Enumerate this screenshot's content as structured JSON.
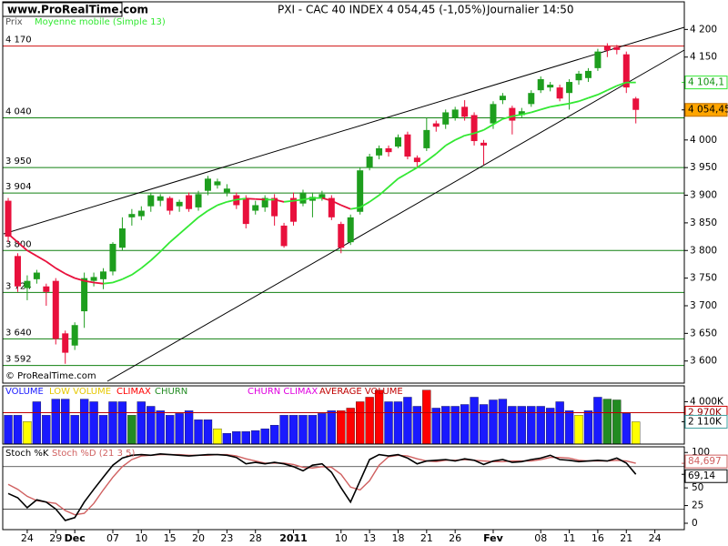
{
  "chart_data": {
    "type": "candlestick",
    "site": "www.ProRealTime.com",
    "title": "PXI - CAC 40 INDEX",
    "price_text": "4 054,45 (-1,05%)",
    "period": "Journalier  14:50",
    "price_axis_title": "Prix",
    "copyright": "© ProRealTime.com",
    "categories": [
      null,
      null,
      "24",
      null,
      null,
      "29",
      null,
      "Dec",
      null,
      null,
      null,
      "07",
      null,
      null,
      "10",
      null,
      null,
      "15",
      null,
      null,
      "20",
      null,
      null,
      "23",
      null,
      null,
      "28",
      null,
      null,
      null,
      "2011",
      null,
      null,
      null,
      null,
      "10",
      null,
      null,
      "13",
      null,
      null,
      "18",
      null,
      null,
      "21",
      null,
      null,
      "26",
      null,
      null,
      null,
      "Fev",
      null,
      null,
      null,
      null,
      "08",
      null,
      null,
      "11",
      null,
      null,
      "16",
      null,
      null,
      "21",
      null,
      null,
      "24"
    ],
    "open": [
      3890,
      3790,
      3732,
      3748,
      3735,
      3745,
      3650,
      3628,
      3690,
      3745,
      3748,
      3762,
      3805,
      3860,
      3862,
      3880,
      3890,
      3895,
      3880,
      3900,
      3878,
      3908,
      3918,
      3905,
      3900,
      3895,
      3872,
      3878,
      3895,
      3845,
      3895,
      3885,
      3890,
      3895,
      3895,
      3848,
      3815,
      3870,
      3950,
      3972,
      3985,
      3988,
      4010,
      3968,
      3985,
      4030,
      4028,
      4040,
      4060,
      4045,
      3995,
      4030,
      4072,
      4058,
      4045,
      4065,
      4090,
      4095,
      4095,
      4085,
      4108,
      4112,
      4130,
      4170,
      4168,
      4155,
      4075,
      null,
      null
    ],
    "high": [
      3895,
      3795,
      3755,
      3765,
      3740,
      3750,
      3655,
      3670,
      3760,
      3760,
      3768,
      3815,
      3860,
      3875,
      3880,
      3905,
      3902,
      3898,
      3892,
      3905,
      3908,
      3935,
      3930,
      3920,
      3905,
      3900,
      3890,
      3900,
      3902,
      3850,
      3905,
      3910,
      3905,
      3908,
      3900,
      3852,
      3865,
      3950,
      3975,
      3990,
      3990,
      4010,
      4015,
      3972,
      4040,
      4035,
      4055,
      4060,
      4072,
      4050,
      4000,
      4070,
      4085,
      4062,
      4058,
      4090,
      4115,
      4105,
      4100,
      4110,
      4125,
      4130,
      4165,
      4175,
      4172,
      4160,
      4078,
      null,
      null
    ],
    "low": [
      3815,
      3725,
      3710,
      3740,
      3700,
      3630,
      3595,
      3620,
      3660,
      3735,
      3730,
      3755,
      3800,
      3845,
      3855,
      3870,
      3880,
      3865,
      3870,
      3870,
      3872,
      3900,
      3912,
      3898,
      3875,
      3840,
      3865,
      3870,
      3845,
      3805,
      3845,
      3880,
      3860,
      3890,
      3855,
      3795,
      3810,
      3865,
      3945,
      3965,
      3970,
      3985,
      3965,
      3950,
      3980,
      4015,
      4020,
      4035,
      4035,
      3990,
      3955,
      4020,
      4065,
      4010,
      4040,
      4060,
      4085,
      4088,
      4070,
      4055,
      4100,
      4105,
      4125,
      4150,
      4155,
      4085,
      4030,
      null,
      null
    ],
    "close": [
      3825,
      3735,
      3745,
      3760,
      3725,
      3640,
      3615,
      3665,
      3750,
      3752,
      3762,
      3812,
      3840,
      3866,
      3872,
      3900,
      3898,
      3872,
      3888,
      3875,
      3902,
      3930,
      3925,
      3912,
      3882,
      3848,
      3882,
      3895,
      3862,
      3808,
      3852,
      3905,
      3897,
      3902,
      3860,
      3805,
      3860,
      3945,
      3970,
      3985,
      3978,
      4005,
      3970,
      3960,
      4018,
      4024,
      4050,
      4055,
      4042,
      3998,
      3990,
      4065,
      4080,
      4035,
      4052,
      4085,
      4110,
      4100,
      4075,
      4105,
      4120,
      4125,
      4160,
      4162,
      4163,
      4095,
      4054.45,
      null,
      null
    ],
    "up_color": "#1e9e1e",
    "down_color": "#e8103c",
    "ylim": [
      3560,
      4250
    ],
    "yticks": [
      {
        "value": 4200,
        "label": "4 200"
      },
      {
        "value": 4150,
        "label": "4 150"
      },
      {
        "value": 4000,
        "label": "4 000"
      },
      {
        "value": 3950,
        "label": "3 950"
      },
      {
        "value": 3900,
        "label": "3 900"
      },
      {
        "value": 3850,
        "label": "3 850"
      },
      {
        "value": 3800,
        "label": "3 800"
      },
      {
        "value": 3750,
        "label": "3 750"
      },
      {
        "value": 3700,
        "label": "3 700"
      },
      {
        "value": 3650,
        "label": "3 650"
      },
      {
        "value": 3600,
        "label": "3 600"
      }
    ],
    "levels": [
      {
        "value": 4170,
        "label": "4 170",
        "color": "#d01010"
      },
      {
        "value": 4040,
        "label": "4 040",
        "color": "#108010"
      },
      {
        "value": 3950,
        "label": "3 950",
        "color": "#108010"
      },
      {
        "value": 3904,
        "label": "3 904",
        "color": "#108010"
      },
      {
        "value": 3800,
        "label": "3 800",
        "color": "#108010"
      },
      {
        "value": 3724,
        "label": "3 724",
        "color": "#108010"
      },
      {
        "value": 3640,
        "label": "3 640",
        "color": "#108010"
      },
      {
        "value": 3592,
        "label": "3 592",
        "color": "#108010"
      }
    ],
    "moving_average": {
      "name": "Moyenne mobile (Simple 13)",
      "color": "#33e833",
      "down_color": "#e8103c",
      "values": [
        3830,
        3815,
        3800,
        3790,
        3780,
        3768,
        3758,
        3750,
        3745,
        3742,
        3740,
        3742,
        3748,
        3756,
        3768,
        3782,
        3798,
        3815,
        3830,
        3845,
        3860,
        3872,
        3882,
        3888,
        3892,
        3894,
        3893,
        3892,
        3892,
        3888,
        3890,
        3892,
        3895,
        3895,
        3890,
        3882,
        3875,
        3878,
        3888,
        3900,
        3915,
        3930,
        3940,
        3950,
        3962,
        3975,
        3990,
        4000,
        4008,
        4012,
        4018,
        4028,
        4038,
        4043,
        4046,
        4050,
        4055,
        4060,
        4063,
        4066,
        4070,
        4076,
        4082,
        4090,
        4098,
        4104,
        4104.1,
        null,
        null
      ],
      "last": {
        "value": 4104.1,
        "label": "4 104,1"
      }
    },
    "last_price": {
      "value": 4054.45,
      "label": "4 054,45",
      "color": "#ffa500"
    },
    "volume": {
      "name": "VOLUME",
      "color": "#1a1aff",
      "legend": [
        {
          "name": "LOW VOLUME",
          "color": "#e6c800"
        },
        {
          "name": "CLIMAX",
          "color": "#ff0000"
        },
        {
          "name": "CHURN",
          "color": "#228b22"
        },
        {
          "name": "CHURN CLIMAX",
          "color": "#e000e0"
        },
        {
          "name": "AVERAGE VOLUME",
          "color": "#c00000"
        }
      ],
      "values": [
        2720,
        2720,
        2130,
        4000,
        2720,
        4250,
        4250,
        2720,
        4250,
        4000,
        2720,
        4000,
        4000,
        2720,
        4000,
        3570,
        3150,
        2720,
        2890,
        3150,
        2300,
        2300,
        1450,
        1020,
        1190,
        1190,
        1280,
        1450,
        1790,
        2720,
        2720,
        2720,
        2720,
        2890,
        3150,
        3150,
        3400,
        4000,
        4430,
        5100,
        4000,
        4000,
        4430,
        3570,
        5100,
        3400,
        3570,
        3570,
        3740,
        4430,
        3740,
        4170,
        4250,
        3570,
        3570,
        3570,
        3570,
        3400,
        4000,
        3150,
        2720,
        3150,
        4430,
        4250,
        4170,
        2900,
        2110,
        null,
        null
      ],
      "colors": [
        "#1a1aff",
        "#1a1aff",
        "#ffff00",
        "#1a1aff",
        "#1a1aff",
        "#1a1aff",
        "#1a1aff",
        "#1a1aff",
        "#1a1aff",
        "#1a1aff",
        "#1a1aff",
        "#1a1aff",
        "#1a1aff",
        "#228b22",
        "#1a1aff",
        "#1a1aff",
        "#1a1aff",
        "#1a1aff",
        "#1a1aff",
        "#1a1aff",
        "#1a1aff",
        "#1a1aff",
        "#ffff00",
        "#1a1aff",
        "#1a1aff",
        "#1a1aff",
        "#1a1aff",
        "#1a1aff",
        "#1a1aff",
        "#1a1aff",
        "#1a1aff",
        "#1a1aff",
        "#1a1aff",
        "#1a1aff",
        "#1a1aff",
        "#ff0000",
        "#ff0000",
        "#ff0000",
        "#ff0000",
        "#ff0000",
        "#1a1aff",
        "#1a1aff",
        "#1a1aff",
        "#1a1aff",
        "#ff0000",
        "#1a1aff",
        "#1a1aff",
        "#1a1aff",
        "#1a1aff",
        "#1a1aff",
        "#1a1aff",
        "#1a1aff",
        "#1a1aff",
        "#1a1aff",
        "#1a1aff",
        "#1a1aff",
        "#1a1aff",
        "#1a1aff",
        "#1a1aff",
        "#1a1aff",
        "#ffff00",
        "#1a1aff",
        "#1a1aff",
        "#228b22",
        "#228b22",
        "#1a1aff",
        "#ffff00",
        null,
        null
      ],
      "ylim": [
        0,
        5500
      ],
      "yticks": [
        {
          "value": 4000,
          "label": "4 000K"
        }
      ],
      "average": {
        "value": 2970,
        "label": "2 970K"
      },
      "last": {
        "value": 2110,
        "label": "2 110K"
      }
    },
    "stochastic": {
      "ylim": [
        -9,
        108
      ],
      "yticks": [
        100,
        50,
        25,
        0
      ],
      "levels": [
        80,
        20
      ],
      "series": [
        {
          "name": "Stoch %K",
          "color": "#000000",
          "values": [
            42,
            36,
            22,
            33,
            30,
            20,
            4,
            8,
            30,
            48,
            65,
            82,
            92,
            96,
            97,
            96,
            98,
            97,
            96,
            95,
            96,
            97,
            97,
            96,
            93,
            84,
            86,
            84,
            86,
            84,
            80,
            74,
            82,
            84,
            72,
            50,
            30,
            60,
            90,
            97,
            95,
            97,
            92,
            84,
            88,
            89,
            90,
            88,
            91,
            89,
            83,
            88,
            90,
            86,
            87,
            90,
            92,
            96,
            90,
            89,
            87,
            88,
            89,
            88,
            92,
            85,
            69.14,
            null,
            null
          ],
          "last": {
            "value": 69.14,
            "label": "69,14"
          }
        },
        {
          "name": "Stoch %D (21 3 5)",
          "color": "#d06060",
          "values": [
            55,
            48,
            38,
            32,
            30,
            28,
            18,
            12,
            14,
            28,
            47,
            65,
            80,
            90,
            95,
            96,
            97,
            97,
            97,
            96,
            96,
            96,
            97,
            97,
            95,
            91,
            88,
            85,
            85,
            85,
            83,
            79,
            78,
            80,
            79,
            69,
            51,
            47,
            60,
            82,
            94,
            96,
            95,
            91,
            88,
            87,
            89,
            89,
            90,
            89,
            88,
            87,
            87,
            88,
            88,
            88,
            90,
            93,
            93,
            92,
            89,
            88,
            88,
            88,
            89,
            88,
            84.697,
            null,
            null
          ],
          "last": {
            "value": 84.697,
            "label": "84,697"
          }
        }
      ]
    }
  }
}
